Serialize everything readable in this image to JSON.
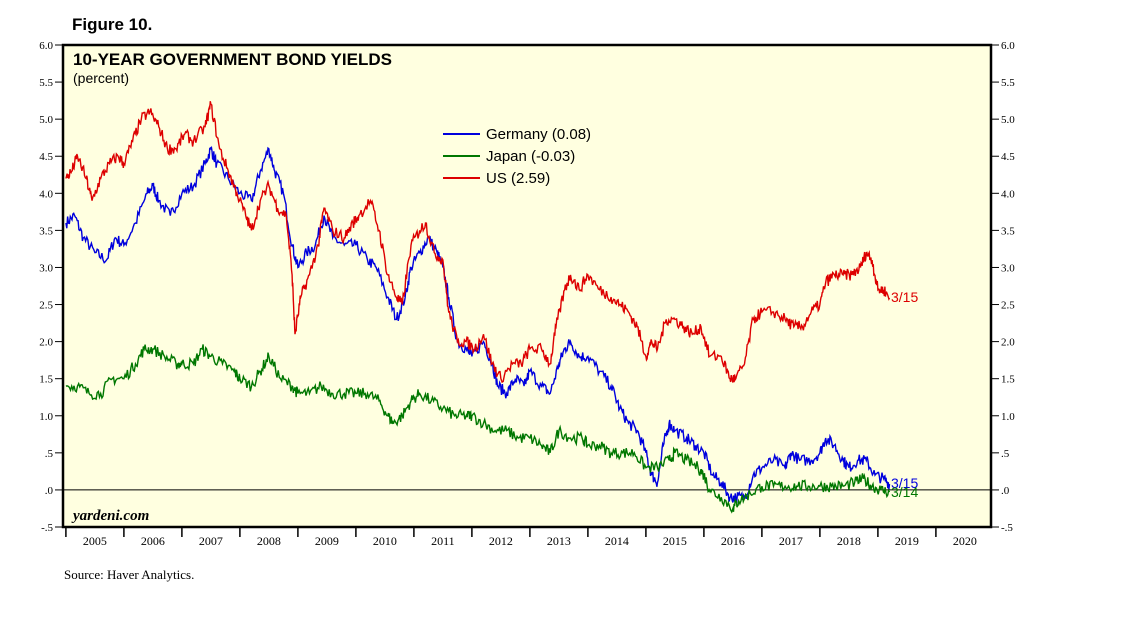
{
  "figure_label": "Figure 10.",
  "source": "Source: Haver Analytics.",
  "brand": "yardeni.com",
  "chart_data": {
    "type": "line",
    "title": "10-YEAR GOVERNMENT BOND YIELDS",
    "subtitle": "(percent)",
    "ylim": [
      -0.5,
      6.0
    ],
    "xlim": [
      2004.95,
      2020.95
    ],
    "y_ticks": [
      6.0,
      5.5,
      5.0,
      4.5,
      4.0,
      3.5,
      3.0,
      2.5,
      2.0,
      1.5,
      1.0,
      0.5,
      0.0,
      -0.5
    ],
    "y_tick_labels": [
      "6.0",
      "5.5",
      "5.0",
      "4.5",
      "4.0",
      "3.5",
      "3.0",
      "2.5",
      "2.0",
      "1.5",
      "1.0",
      ".5",
      ".0",
      "-.5"
    ],
    "x_categories": [
      "2005",
      "2006",
      "2007",
      "2008",
      "2009",
      "2010",
      "2011",
      "2012",
      "2013",
      "2014",
      "2015",
      "2016",
      "2017",
      "2018",
      "2019",
      "2020"
    ],
    "zero_line": 0,
    "legend_position": "top-center",
    "plot_background": "#FFFFE0",
    "series": [
      {
        "name": "Germany (0.08)",
        "color": "#0000DD",
        "end_label": "3/15",
        "points": [
          [
            2005.0,
            3.6
          ],
          [
            2005.15,
            3.7
          ],
          [
            2005.3,
            3.4
          ],
          [
            2005.5,
            3.2
          ],
          [
            2005.7,
            3.1
          ],
          [
            2005.85,
            3.4
          ],
          [
            2006.0,
            3.3
          ],
          [
            2006.2,
            3.6
          ],
          [
            2006.4,
            4.0
          ],
          [
            2006.5,
            4.1
          ],
          [
            2006.6,
            3.9
          ],
          [
            2006.8,
            3.7
          ],
          [
            2007.0,
            4.0
          ],
          [
            2007.2,
            4.1
          ],
          [
            2007.4,
            4.4
          ],
          [
            2007.5,
            4.6
          ],
          [
            2007.6,
            4.4
          ],
          [
            2007.8,
            4.2
          ],
          [
            2008.0,
            4.0
          ],
          [
            2008.2,
            3.9
          ],
          [
            2008.35,
            4.3
          ],
          [
            2008.5,
            4.6
          ],
          [
            2008.6,
            4.3
          ],
          [
            2008.75,
            4.0
          ],
          [
            2008.9,
            3.3
          ],
          [
            2009.0,
            3.0
          ],
          [
            2009.15,
            3.2
          ],
          [
            2009.3,
            3.3
          ],
          [
            2009.45,
            3.7
          ],
          [
            2009.6,
            3.4
          ],
          [
            2009.8,
            3.3
          ],
          [
            2010.0,
            3.3
          ],
          [
            2010.2,
            3.1
          ],
          [
            2010.35,
            3.0
          ],
          [
            2010.55,
            2.6
          ],
          [
            2010.7,
            2.3
          ],
          [
            2010.85,
            2.6
          ],
          [
            2010.95,
            3.0
          ],
          [
            2011.1,
            3.2
          ],
          [
            2011.25,
            3.4
          ],
          [
            2011.4,
            3.2
          ],
          [
            2011.5,
            3.0
          ],
          [
            2011.6,
            2.6
          ],
          [
            2011.75,
            2.0
          ],
          [
            2011.9,
            1.9
          ],
          [
            2012.0,
            1.8
          ],
          [
            2012.2,
            2.0
          ],
          [
            2012.35,
            1.7
          ],
          [
            2012.45,
            1.4
          ],
          [
            2012.6,
            1.3
          ],
          [
            2012.75,
            1.5
          ],
          [
            2012.9,
            1.4
          ],
          [
            2013.0,
            1.6
          ],
          [
            2013.2,
            1.4
          ],
          [
            2013.35,
            1.3
          ],
          [
            2013.5,
            1.7
          ],
          [
            2013.6,
            1.9
          ],
          [
            2013.7,
            2.0
          ],
          [
            2013.85,
            1.8
          ],
          [
            2014.0,
            1.8
          ],
          [
            2014.2,
            1.6
          ],
          [
            2014.4,
            1.4
          ],
          [
            2014.55,
            1.1
          ],
          [
            2014.7,
            0.9
          ],
          [
            2014.85,
            0.8
          ],
          [
            2015.0,
            0.5
          ],
          [
            2015.1,
            0.2
          ],
          [
            2015.2,
            0.1
          ],
          [
            2015.3,
            0.6
          ],
          [
            2015.4,
            0.9
          ],
          [
            2015.5,
            0.8
          ],
          [
            2015.7,
            0.7
          ],
          [
            2015.85,
            0.6
          ],
          [
            2016.0,
            0.5
          ],
          [
            2016.15,
            0.2
          ],
          [
            2016.3,
            0.1
          ],
          [
            2016.45,
            -0.1
          ],
          [
            2016.55,
            -0.1
          ],
          [
            2016.7,
            -0.1
          ],
          [
            2016.85,
            0.2
          ],
          [
            2017.0,
            0.3
          ],
          [
            2017.2,
            0.4
          ],
          [
            2017.4,
            0.3
          ],
          [
            2017.5,
            0.5
          ],
          [
            2017.65,
            0.4
          ],
          [
            2017.85,
            0.4
          ],
          [
            2018.0,
            0.5
          ],
          [
            2018.1,
            0.7
          ],
          [
            2018.25,
            0.6
          ],
          [
            2018.4,
            0.4
          ],
          [
            2018.5,
            0.3
          ],
          [
            2018.65,
            0.4
          ],
          [
            2018.8,
            0.4
          ],
          [
            2018.95,
            0.2
          ],
          [
            2019.1,
            0.15
          ],
          [
            2019.2,
            0.08
          ]
        ]
      },
      {
        "name": "Japan (-0.03)",
        "color": "#007700",
        "end_label": "3/14",
        "points": [
          [
            2005.0,
            1.4
          ],
          [
            2005.2,
            1.4
          ],
          [
            2005.4,
            1.3
          ],
          [
            2005.6,
            1.3
          ],
          [
            2005.8,
            1.5
          ],
          [
            2006.0,
            1.5
          ],
          [
            2006.2,
            1.7
          ],
          [
            2006.35,
            1.9
          ],
          [
            2006.5,
            1.9
          ],
          [
            2006.7,
            1.8
          ],
          [
            2006.9,
            1.7
          ],
          [
            2007.0,
            1.7
          ],
          [
            2007.2,
            1.7
          ],
          [
            2007.35,
            1.9
          ],
          [
            2007.5,
            1.8
          ],
          [
            2007.7,
            1.7
          ],
          [
            2007.9,
            1.6
          ],
          [
            2008.0,
            1.5
          ],
          [
            2008.2,
            1.4
          ],
          [
            2008.35,
            1.6
          ],
          [
            2008.5,
            1.8
          ],
          [
            2008.7,
            1.5
          ],
          [
            2008.9,
            1.4
          ],
          [
            2009.0,
            1.3
          ],
          [
            2009.2,
            1.3
          ],
          [
            2009.4,
            1.4
          ],
          [
            2009.6,
            1.3
          ],
          [
            2009.8,
            1.3
          ],
          [
            2010.0,
            1.3
          ],
          [
            2010.2,
            1.3
          ],
          [
            2010.4,
            1.2
          ],
          [
            2010.55,
            1.0
          ],
          [
            2010.65,
            0.9
          ],
          [
            2010.8,
            1.0
          ],
          [
            2010.95,
            1.2
          ],
          [
            2011.1,
            1.3
          ],
          [
            2011.3,
            1.2
          ],
          [
            2011.5,
            1.1
          ],
          [
            2011.7,
            1.0
          ],
          [
            2011.9,
            1.0
          ],
          [
            2012.0,
            1.0
          ],
          [
            2012.2,
            0.9
          ],
          [
            2012.4,
            0.8
          ],
          [
            2012.6,
            0.8
          ],
          [
            2012.8,
            0.7
          ],
          [
            2013.0,
            0.7
          ],
          [
            2013.2,
            0.6
          ],
          [
            2013.35,
            0.5
          ],
          [
            2013.5,
            0.8
          ],
          [
            2013.7,
            0.7
          ],
          [
            2013.9,
            0.7
          ],
          [
            2014.0,
            0.6
          ],
          [
            2014.2,
            0.6
          ],
          [
            2014.4,
            0.5
          ],
          [
            2014.6,
            0.5
          ],
          [
            2014.8,
            0.5
          ],
          [
            2015.0,
            0.3
          ],
          [
            2015.2,
            0.3
          ],
          [
            2015.4,
            0.4
          ],
          [
            2015.5,
            0.5
          ],
          [
            2015.7,
            0.4
          ],
          [
            2015.9,
            0.3
          ],
          [
            2016.0,
            0.2
          ],
          [
            2016.1,
            0.0
          ],
          [
            2016.3,
            -0.1
          ],
          [
            2016.5,
            -0.25
          ],
          [
            2016.6,
            -0.15
          ],
          [
            2016.8,
            -0.05
          ],
          [
            2017.0,
            0.05
          ],
          [
            2017.2,
            0.05
          ],
          [
            2017.4,
            0.05
          ],
          [
            2017.6,
            0.05
          ],
          [
            2017.8,
            0.05
          ],
          [
            2018.0,
            0.05
          ],
          [
            2018.2,
            0.05
          ],
          [
            2018.4,
            0.05
          ],
          [
            2018.6,
            0.1
          ],
          [
            2018.75,
            0.15
          ],
          [
            2018.9,
            0.05
          ],
          [
            2019.05,
            0.0
          ],
          [
            2019.2,
            -0.03
          ]
        ]
      },
      {
        "name": "US (2.59)",
        "color": "#DD0000",
        "end_label": "3/15",
        "points": [
          [
            2005.0,
            4.2
          ],
          [
            2005.1,
            4.3
          ],
          [
            2005.2,
            4.5
          ],
          [
            2005.35,
            4.2
          ],
          [
            2005.45,
            3.9
          ],
          [
            2005.6,
            4.2
          ],
          [
            2005.75,
            4.4
          ],
          [
            2005.9,
            4.5
          ],
          [
            2006.0,
            4.4
          ],
          [
            2006.15,
            4.7
          ],
          [
            2006.3,
            5.0
          ],
          [
            2006.45,
            5.1
          ],
          [
            2006.6,
            4.9
          ],
          [
            2006.75,
            4.6
          ],
          [
            2006.9,
            4.6
          ],
          [
            2007.05,
            4.8
          ],
          [
            2007.2,
            4.7
          ],
          [
            2007.4,
            4.9
          ],
          [
            2007.5,
            5.2
          ],
          [
            2007.65,
            4.6
          ],
          [
            2007.8,
            4.3
          ],
          [
            2007.95,
            4.0
          ],
          [
            2008.1,
            3.7
          ],
          [
            2008.2,
            3.5
          ],
          [
            2008.35,
            3.9
          ],
          [
            2008.5,
            4.1
          ],
          [
            2008.65,
            3.8
          ],
          [
            2008.8,
            3.7
          ],
          [
            2008.9,
            2.9
          ],
          [
            2008.95,
            2.1
          ],
          [
            2009.05,
            2.6
          ],
          [
            2009.2,
            2.9
          ],
          [
            2009.35,
            3.3
          ],
          [
            2009.45,
            3.8
          ],
          [
            2009.6,
            3.5
          ],
          [
            2009.8,
            3.4
          ],
          [
            2009.95,
            3.6
          ],
          [
            2010.05,
            3.7
          ],
          [
            2010.25,
            3.9
          ],
          [
            2010.4,
            3.5
          ],
          [
            2010.55,
            2.9
          ],
          [
            2010.7,
            2.6
          ],
          [
            2010.8,
            2.5
          ],
          [
            2010.95,
            3.3
          ],
          [
            2011.1,
            3.5
          ],
          [
            2011.2,
            3.6
          ],
          [
            2011.35,
            3.2
          ],
          [
            2011.5,
            3.1
          ],
          [
            2011.6,
            2.4
          ],
          [
            2011.75,
            2.0
          ],
          [
            2011.9,
            2.0
          ],
          [
            2012.05,
            1.9
          ],
          [
            2012.2,
            2.1
          ],
          [
            2012.35,
            1.7
          ],
          [
            2012.5,
            1.5
          ],
          [
            2012.7,
            1.7
          ],
          [
            2012.85,
            1.7
          ],
          [
            2013.0,
            1.9
          ],
          [
            2013.2,
            1.9
          ],
          [
            2013.35,
            1.7
          ],
          [
            2013.45,
            2.2
          ],
          [
            2013.6,
            2.7
          ],
          [
            2013.7,
            2.9
          ],
          [
            2013.85,
            2.7
          ],
          [
            2014.0,
            2.9
          ],
          [
            2014.2,
            2.7
          ],
          [
            2014.4,
            2.6
          ],
          [
            2014.55,
            2.5
          ],
          [
            2014.7,
            2.4
          ],
          [
            2014.85,
            2.2
          ],
          [
            2015.0,
            1.8
          ],
          [
            2015.1,
            2.0
          ],
          [
            2015.2,
            1.9
          ],
          [
            2015.35,
            2.3
          ],
          [
            2015.5,
            2.3
          ],
          [
            2015.65,
            2.2
          ],
          [
            2015.8,
            2.1
          ],
          [
            2015.95,
            2.2
          ],
          [
            2016.1,
            1.8
          ],
          [
            2016.3,
            1.8
          ],
          [
            2016.45,
            1.5
          ],
          [
            2016.55,
            1.5
          ],
          [
            2016.7,
            1.7
          ],
          [
            2016.85,
            2.3
          ],
          [
            2017.0,
            2.4
          ],
          [
            2017.2,
            2.4
          ],
          [
            2017.4,
            2.3
          ],
          [
            2017.55,
            2.2
          ],
          [
            2017.7,
            2.2
          ],
          [
            2017.85,
            2.4
          ],
          [
            2018.0,
            2.5
          ],
          [
            2018.1,
            2.8
          ],
          [
            2018.25,
            2.9
          ],
          [
            2018.4,
            2.9
          ],
          [
            2018.55,
            2.9
          ],
          [
            2018.7,
            3.0
          ],
          [
            2018.8,
            3.2
          ],
          [
            2018.9,
            3.1
          ],
          [
            2019.0,
            2.7
          ],
          [
            2019.1,
            2.7
          ],
          [
            2019.2,
            2.59
          ]
        ]
      }
    ]
  }
}
